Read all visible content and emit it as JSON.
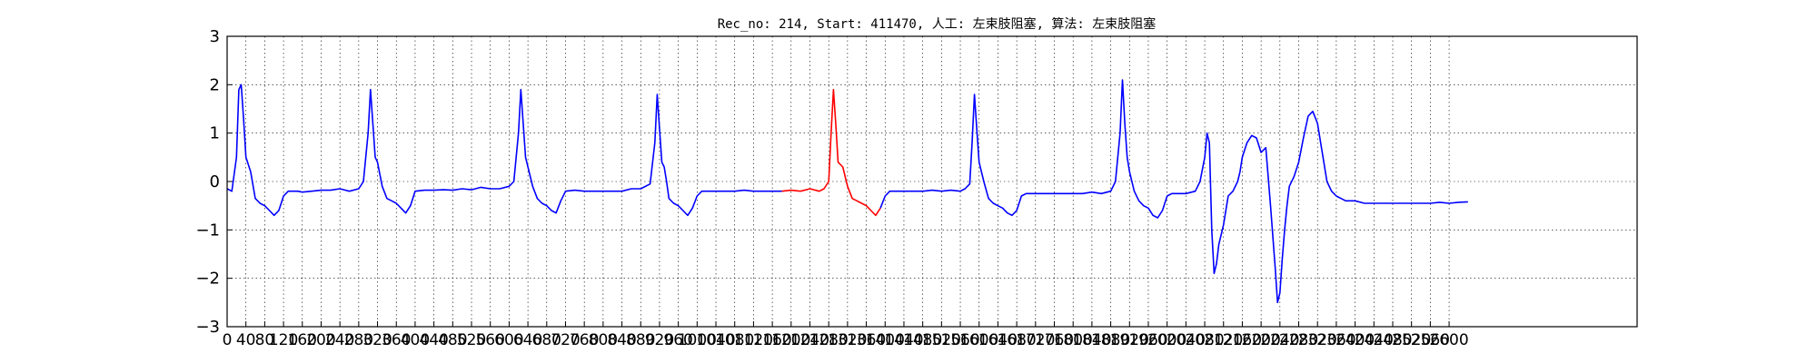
{
  "chart_data": {
    "type": "line",
    "title": "Rec_no: 214, Start: 411470, 人工: 左束肢阻塞, 算法: 左束肢阻塞",
    "xlabel": "",
    "ylabel": "",
    "xlim": [
      0,
      3000
    ],
    "ylim": [
      -3,
      3
    ],
    "grid": true,
    "yticks": [
      3,
      2,
      1,
      0,
      -1,
      -2,
      -3
    ],
    "ytick_labels": [
      "3",
      "2",
      "1",
      "0",
      "−1",
      "−2",
      "−3"
    ],
    "xticks": [
      0,
      40,
      80,
      120,
      160,
      200,
      240,
      280,
      320,
      360,
      400,
      440,
      480,
      520,
      560,
      600,
      640,
      680,
      720,
      760,
      800,
      840,
      880,
      920,
      960,
      1000,
      1040,
      1080,
      1120,
      1160,
      1200,
      1240,
      1280,
      1320,
      1360,
      1400,
      1440,
      1480,
      1520,
      1560,
      1600,
      1640,
      1680,
      1720,
      1760,
      1800,
      1840,
      1880,
      1920,
      1960,
      2000,
      2040,
      2080,
      2120,
      2160,
      2200,
      2240,
      2280,
      2320,
      2360,
      2400,
      2440,
      2480,
      2520,
      2560,
      2600
    ],
    "series": [
      {
        "color": "#0000ff",
        "x": [
          0,
          10,
          20,
          25,
          30,
          35,
          40,
          50,
          60,
          70,
          80,
          90,
          100,
          110,
          120,
          130,
          140,
          150,
          160,
          180,
          200,
          220,
          240,
          260,
          280,
          290,
          300,
          305,
          310,
          315,
          320,
          330,
          340,
          350,
          360,
          370,
          380,
          390,
          400,
          420,
          440,
          460,
          480,
          500,
          520,
          540,
          560,
          580,
          600,
          610,
          620,
          625,
          630,
          635,
          640,
          650,
          660,
          670,
          680,
          690,
          700,
          710,
          720,
          740,
          760,
          780,
          800,
          820,
          840,
          860,
          880,
          900,
          910,
          915,
          920,
          925,
          930,
          935,
          940,
          950,
          960,
          970,
          980,
          990,
          1000,
          1010,
          1020,
          1040,
          1060,
          1080,
          1100,
          1120,
          1140,
          1160,
          1180
        ],
        "y": [
          -0.15,
          -0.2,
          0.5,
          1.9,
          2.0,
          1.3,
          0.5,
          0.2,
          -0.35,
          -0.45,
          -0.5,
          -0.6,
          -0.7,
          -0.6,
          -0.3,
          -0.2,
          -0.2,
          -0.2,
          -0.22,
          -0.2,
          -0.18,
          -0.18,
          -0.15,
          -0.2,
          -0.15,
          0.0,
          1.0,
          1.9,
          1.2,
          0.5,
          0.4,
          -0.1,
          -0.35,
          -0.4,
          -0.45,
          -0.55,
          -0.65,
          -0.5,
          -0.2,
          -0.18,
          -0.18,
          -0.17,
          -0.18,
          -0.15,
          -0.17,
          -0.12,
          -0.15,
          -0.15,
          -0.1,
          0.0,
          1.0,
          1.9,
          1.2,
          0.5,
          0.3,
          -0.1,
          -0.35,
          -0.45,
          -0.5,
          -0.6,
          -0.65,
          -0.4,
          -0.2,
          -0.18,
          -0.2,
          -0.2,
          -0.2,
          -0.2,
          -0.2,
          -0.15,
          -0.15,
          -0.05,
          0.8,
          1.8,
          1.1,
          0.4,
          0.3,
          0.0,
          -0.35,
          -0.45,
          -0.5,
          -0.6,
          -0.7,
          -0.55,
          -0.3,
          -0.2,
          -0.2,
          -0.2,
          -0.2,
          -0.2,
          -0.18,
          -0.2,
          -0.2,
          -0.2,
          -0.2
        ]
      },
      {
        "color": "#ff0000",
        "x": [
          1180,
          1200,
          1220,
          1240,
          1260,
          1270,
          1280,
          1285,
          1290,
          1295,
          1300,
          1310,
          1320,
          1330,
          1340,
          1350,
          1360,
          1370,
          1380,
          1390
        ],
        "y": [
          -0.2,
          -0.18,
          -0.2,
          -0.15,
          -0.2,
          -0.15,
          0.0,
          1.0,
          1.9,
          1.2,
          0.4,
          0.3,
          -0.1,
          -0.35,
          -0.4,
          -0.45,
          -0.5,
          -0.6,
          -0.7,
          -0.55
        ]
      },
      {
        "color": "#0000ff",
        "x": [
          1390,
          1400,
          1410,
          1420,
          1440,
          1460,
          1480,
          1500,
          1520,
          1540,
          1560,
          1570,
          1580,
          1585,
          1590,
          1595,
          1600,
          1610,
          1620,
          1630,
          1640,
          1650,
          1660,
          1670,
          1680,
          1690,
          1700,
          1710,
          1720,
          1740,
          1760,
          1780,
          1800,
          1820,
          1840,
          1860,
          1880,
          1890,
          1900,
          1905,
          1910,
          1915,
          1920,
          1930,
          1940,
          1950,
          1960,
          1970,
          1980,
          1990,
          2000,
          2010,
          2020,
          2040,
          2060,
          2070,
          2080,
          2085,
          2090,
          2095,
          2100,
          2105,
          2110,
          2120,
          2130,
          2140,
          2150,
          2155,
          2160,
          2170,
          2180,
          2190,
          2200,
          2210,
          2220,
          2230,
          2235,
          2240,
          2245,
          2250,
          2255,
          2260,
          2270,
          2280,
          2290,
          2300,
          2310,
          2320,
          2330,
          2340,
          2350,
          2360,
          2370,
          2380,
          2400,
          2420,
          2440,
          2460,
          2480,
          2500,
          2520,
          2540,
          2560,
          2580,
          2600,
          2620,
          2640
        ],
        "y": [
          -0.55,
          -0.3,
          -0.2,
          -0.2,
          -0.2,
          -0.2,
          -0.2,
          -0.18,
          -0.2,
          -0.18,
          -0.2,
          -0.15,
          -0.05,
          0.8,
          1.8,
          1.1,
          0.4,
          0.0,
          -0.35,
          -0.45,
          -0.5,
          -0.55,
          -0.65,
          -0.7,
          -0.6,
          -0.3,
          -0.25,
          -0.25,
          -0.25,
          -0.25,
          -0.25,
          -0.25,
          -0.25,
          -0.25,
          -0.22,
          -0.25,
          -0.2,
          0.0,
          1.0,
          2.1,
          1.2,
          0.5,
          0.2,
          -0.2,
          -0.4,
          -0.5,
          -0.55,
          -0.7,
          -0.75,
          -0.6,
          -0.3,
          -0.25,
          -0.25,
          -0.25,
          -0.2,
          0.0,
          0.5,
          1.0,
          0.8,
          -1.0,
          -1.9,
          -1.7,
          -1.3,
          -0.9,
          -0.3,
          -0.2,
          0.0,
          0.2,
          0.5,
          0.8,
          0.95,
          0.9,
          0.6,
          0.7,
          -0.5,
          -1.8,
          -2.5,
          -2.3,
          -1.6,
          -1.0,
          -0.5,
          -0.1,
          0.1,
          0.4,
          0.9,
          1.35,
          1.45,
          1.2,
          0.6,
          0.0,
          -0.2,
          -0.3,
          -0.35,
          -0.4,
          -0.4,
          -0.45,
          -0.45,
          -0.45,
          -0.45,
          -0.45,
          -0.45,
          -0.45,
          -0.45,
          -0.43,
          -0.45,
          -0.43,
          -0.42
        ]
      }
    ]
  }
}
